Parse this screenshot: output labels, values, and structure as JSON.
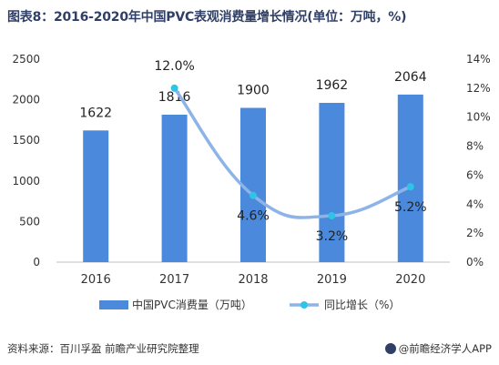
{
  "title": "图表8：2016-2020年中国PVC表观消费量增长情况(单位：万吨，%)",
  "source": "资料来源：百川孚盈 前瞻产业研究院整理",
  "brand": "@前瞻经济学人APP",
  "colors": {
    "bar": "#4a89dc",
    "line": "#8db4e8",
    "marker": "#2ec4e6",
    "axis": "#bfbfbf",
    "title": "#2f3f66"
  },
  "chart_data": {
    "type": "bar+line",
    "categories": [
      "2016",
      "2017",
      "2018",
      "2019",
      "2020"
    ],
    "series": [
      {
        "name": "中国PVC消费量（万吨）",
        "type": "bar",
        "axis": "left",
        "values": [
          1622,
          1816,
          1900,
          1962,
          2064
        ],
        "labels": [
          "1622",
          "1816",
          "1900",
          "1962",
          "2064"
        ]
      },
      {
        "name": "同比增长（%）",
        "type": "line",
        "axis": "right",
        "values": [
          null,
          12.0,
          4.6,
          3.2,
          5.2
        ],
        "labels": [
          "",
          "12.0%",
          "4.6%",
          "3.2%",
          "5.2%"
        ]
      }
    ],
    "y_left": {
      "min": 0,
      "max": 2500,
      "ticks": [
        "0",
        "500",
        "1000",
        "1500",
        "2000",
        "2500"
      ]
    },
    "y_right": {
      "min": 0,
      "max": 14,
      "ticks": [
        "0%",
        "2%",
        "4%",
        "6%",
        "8%",
        "10%",
        "12%",
        "14%"
      ]
    },
    "legend_position": "bottom",
    "grid": false
  }
}
